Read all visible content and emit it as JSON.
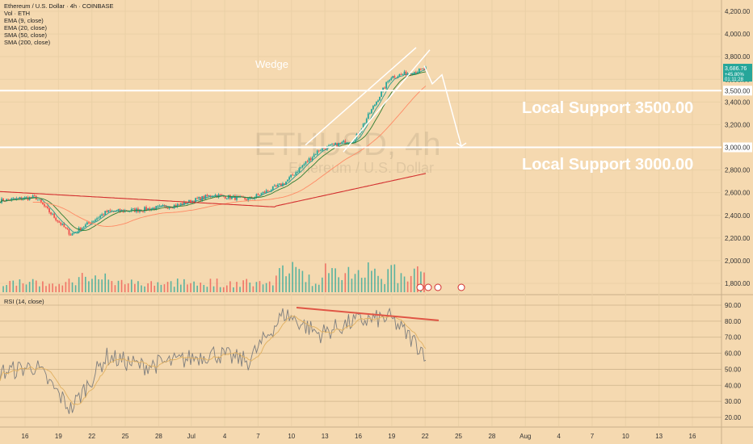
{
  "header": {
    "symbol_line": "Ethereum / U.S. Dollar · 4h · COINBASE",
    "indicators": [
      "Vol · ETH",
      "EMA (9, close)",
      "EMA (20, close)",
      "SMA (50, close)",
      "SMA (200, close)"
    ]
  },
  "watermark": {
    "symbol": "ETHUSD, 4h",
    "name": "Ethereum / U.S. Dollar"
  },
  "annotations": {
    "pattern": "Wedge",
    "support1": "Local Support 3500.00",
    "support2": "Local Support 3000.00"
  },
  "price_axis": {
    "ticks": [
      "4,200.00",
      "4,000.00",
      "3,800.00",
      "3,600.00",
      "3,400.00",
      "3,200.00",
      "3,000.00",
      "2,800.00",
      "2,600.00",
      "2,400.00",
      "2,200.00",
      "2,000.00",
      "1,800.00"
    ],
    "tick_values": [
      4200,
      4000,
      3800,
      3600,
      3400,
      3200,
      3000,
      2800,
      2600,
      2400,
      2200,
      2000,
      1800
    ],
    "price_label": {
      "value": "3,686.76",
      "change": "+45.80%",
      "countdown": "01:11:28"
    },
    "level_labels": [
      "3,500.00",
      "3,000.00"
    ]
  },
  "rsi": {
    "title": "RSI (14, close)",
    "ticks": [
      "90.00",
      "80.00",
      "70.00",
      "60.00",
      "50.00",
      "40.00",
      "30.00",
      "20.00"
    ],
    "tick_values": [
      90,
      80,
      70,
      60,
      50,
      40,
      30,
      20
    ]
  },
  "time_axis": [
    "16",
    "19",
    "22",
    "25",
    "28",
    "Jul",
    "4",
    "7",
    "10",
    "13",
    "16",
    "19",
    "22",
    "25",
    "28",
    "Aug",
    "4",
    "7",
    "10",
    "13",
    "16"
  ],
  "chart_data": {
    "type": "line",
    "price_series": {
      "name": "ETHUSD 4h",
      "x": [
        "16",
        "19",
        "22",
        "25",
        "28",
        "Jul",
        "4",
        "7",
        "10",
        "13",
        "16",
        "19",
        "22"
      ],
      "values": [
        2530,
        2560,
        2230,
        2430,
        2450,
        2490,
        2580,
        2540,
        2680,
        2980,
        3070,
        3620,
        3690
      ]
    },
    "levels": [
      3500,
      3000
    ],
    "ylim": [
      1750,
      4250
    ],
    "rsi_series": {
      "x": [
        "16",
        "19",
        "22",
        "25",
        "28",
        "Jul",
        "4",
        "7",
        "10",
        "13",
        "16",
        "19",
        "22"
      ],
      "values": [
        48,
        52,
        25,
        58,
        52,
        55,
        60,
        55,
        85,
        72,
        80,
        82,
        60
      ]
    },
    "rsi_ylim": [
      15,
      95
    ],
    "colors": {
      "background": "#f5d9b0",
      "up": "#26a69a",
      "down": "#ef5350",
      "ema9": "#2a9d8f",
      "ema20": "#2e7d32",
      "sma50": "#ff8a65",
      "sma200": "#d32f2f",
      "level": "#ffffff"
    }
  }
}
